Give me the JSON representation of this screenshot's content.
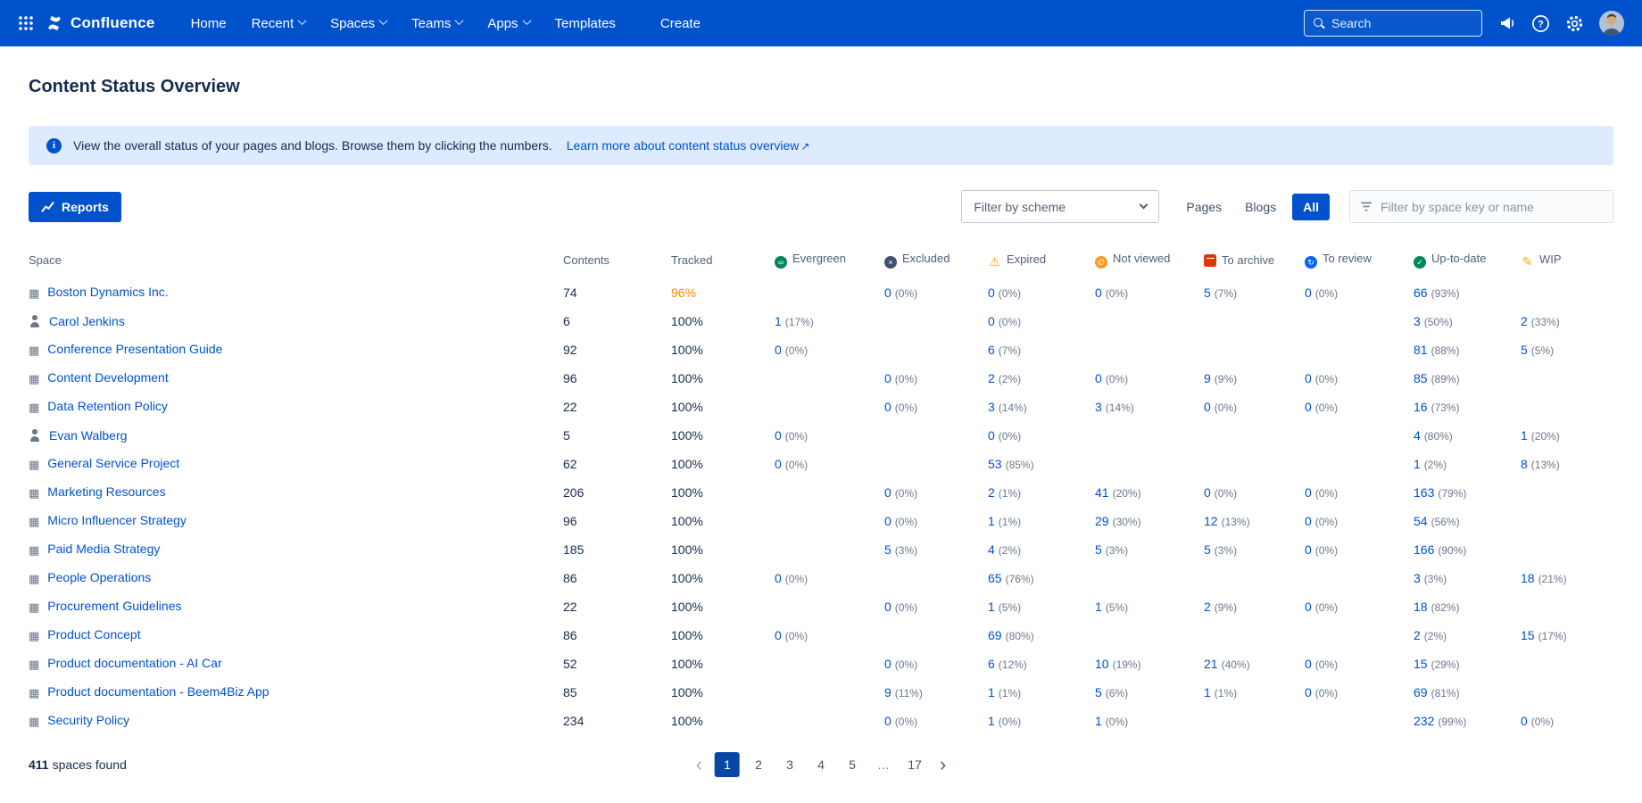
{
  "nav": {
    "brand": "Confluence",
    "items": [
      {
        "label": "Home",
        "chevron": false
      },
      {
        "label": "Recent",
        "chevron": true
      },
      {
        "label": "Spaces",
        "chevron": true
      },
      {
        "label": "Teams",
        "chevron": true
      },
      {
        "label": "Apps",
        "chevron": true
      },
      {
        "label": "Templates",
        "chevron": false
      }
    ],
    "create_label": "Create",
    "search_placeholder": "Search"
  },
  "page": {
    "title": "Content Status Overview",
    "banner": {
      "info_glyph": "i",
      "text": "View the overall status of your pages and blogs. Browse them by clicking the numbers.",
      "link": "Learn more about content status overview",
      "link_arrow": "↗"
    }
  },
  "toolbar": {
    "reports_label": "Reports",
    "scheme_filter_label": "Filter by scheme",
    "toggles": [
      "Pages",
      "Blogs",
      "All"
    ],
    "active_toggle": "All",
    "space_filter_placeholder": "Filter by space key or name"
  },
  "icons": {
    "space_glyph": "▦"
  },
  "colors": {
    "nav_blue": "#0052CC",
    "link_blue": "#0052CC",
    "tracked_warning": "#FF8B00",
    "selected_page_bg": "#0747A6",
    "banner_bg": "#DEEBFF"
  },
  "table": {
    "columns": [
      {
        "key": "space",
        "label": "Space"
      },
      {
        "key": "contents",
        "label": "Contents"
      },
      {
        "key": "tracked",
        "label": "Tracked"
      },
      {
        "key": "evergreen",
        "label": "Evergreen",
        "icon": "evergreen-icon",
        "color": "#00875A",
        "glyph": "∞",
        "shape": "circle"
      },
      {
        "key": "excluded",
        "label": "Excluded",
        "icon": "excluded-icon",
        "color": "#42526E",
        "glyph": "×",
        "shape": "circle"
      },
      {
        "key": "expired",
        "label": "Expired",
        "icon": "expired-icon",
        "color": "#FFAB00",
        "glyph": "⚠",
        "shape": "glyph"
      },
      {
        "key": "not_viewed",
        "label": "Not viewed",
        "icon": "not-viewed-icon",
        "color": "#FF991F",
        "glyph": "∅",
        "shape": "circle"
      },
      {
        "key": "to_archive",
        "label": "To archive",
        "icon": "to-archive-icon",
        "color": "#DE350B",
        "glyph": "",
        "shape": "archive"
      },
      {
        "key": "to_review",
        "label": "To review",
        "icon": "to-review-icon",
        "color": "#0065FF",
        "glyph": "↻",
        "shape": "circle"
      },
      {
        "key": "up_to_date",
        "label": "Up-to-date",
        "icon": "up-to-date-icon",
        "color": "#00875A",
        "glyph": "✓",
        "shape": "circle"
      },
      {
        "key": "wip",
        "label": "WIP",
        "icon": "wip-icon",
        "color": "#FFAB00",
        "glyph": "✎",
        "shape": "glyph"
      }
    ],
    "rows": [
      {
        "name": "Boston Dynamics Inc.",
        "icon": "space",
        "contents": "74",
        "tracked": "96%",
        "tracked_warning": true,
        "status": [
          null,
          {
            "v": "0",
            "p": "(0%)"
          },
          {
            "v": "0",
            "p": "(0%)"
          },
          {
            "v": "0",
            "p": "(0%)"
          },
          {
            "v": "5",
            "p": "(7%)"
          },
          {
            "v": "0",
            "p": "(0%)"
          },
          {
            "v": "66",
            "p": "(93%)"
          },
          null
        ]
      },
      {
        "name": "Carol Jenkins",
        "icon": "person",
        "contents": "6",
        "tracked": "100%",
        "tracked_warning": false,
        "status": [
          {
            "v": "1",
            "p": "(17%)"
          },
          null,
          {
            "v": "0",
            "p": "(0%)"
          },
          null,
          null,
          null,
          {
            "v": "3",
            "p": "(50%)"
          },
          {
            "v": "2",
            "p": "(33%)"
          }
        ]
      },
      {
        "name": "Conference Presentation Guide",
        "icon": "space",
        "contents": "92",
        "tracked": "100%",
        "tracked_warning": false,
        "status": [
          {
            "v": "0",
            "p": "(0%)"
          },
          null,
          {
            "v": "6",
            "p": "(7%)"
          },
          null,
          null,
          null,
          {
            "v": "81",
            "p": "(88%)"
          },
          {
            "v": "5",
            "p": "(5%)"
          }
        ]
      },
      {
        "name": "Content Development",
        "icon": "space",
        "contents": "96",
        "tracked": "100%",
        "tracked_warning": false,
        "status": [
          null,
          {
            "v": "0",
            "p": "(0%)"
          },
          {
            "v": "2",
            "p": "(2%)"
          },
          {
            "v": "0",
            "p": "(0%)"
          },
          {
            "v": "9",
            "p": "(9%)"
          },
          {
            "v": "0",
            "p": "(0%)"
          },
          {
            "v": "85",
            "p": "(89%)"
          },
          null
        ]
      },
      {
        "name": "Data Retention Policy",
        "icon": "space",
        "contents": "22",
        "tracked": "100%",
        "tracked_warning": false,
        "status": [
          null,
          {
            "v": "0",
            "p": "(0%)"
          },
          {
            "v": "3",
            "p": "(14%)"
          },
          {
            "v": "3",
            "p": "(14%)"
          },
          {
            "v": "0",
            "p": "(0%)"
          },
          {
            "v": "0",
            "p": "(0%)"
          },
          {
            "v": "16",
            "p": "(73%)"
          },
          null
        ]
      },
      {
        "name": "Evan Walberg",
        "icon": "person",
        "contents": "5",
        "tracked": "100%",
        "tracked_warning": false,
        "status": [
          {
            "v": "0",
            "p": "(0%)"
          },
          null,
          {
            "v": "0",
            "p": "(0%)"
          },
          null,
          null,
          null,
          {
            "v": "4",
            "p": "(80%)"
          },
          {
            "v": "1",
            "p": "(20%)"
          }
        ]
      },
      {
        "name": "General Service Project",
        "icon": "space",
        "contents": "62",
        "tracked": "100%",
        "tracked_warning": false,
        "status": [
          {
            "v": "0",
            "p": "(0%)"
          },
          null,
          {
            "v": "53",
            "p": "(85%)"
          },
          null,
          null,
          null,
          {
            "v": "1",
            "p": "(2%)"
          },
          {
            "v": "8",
            "p": "(13%)"
          }
        ]
      },
      {
        "name": "Marketing Resources",
        "icon": "space",
        "contents": "206",
        "tracked": "100%",
        "tracked_warning": false,
        "status": [
          null,
          {
            "v": "0",
            "p": "(0%)"
          },
          {
            "v": "2",
            "p": "(1%)"
          },
          {
            "v": "41",
            "p": "(20%)"
          },
          {
            "v": "0",
            "p": "(0%)"
          },
          {
            "v": "0",
            "p": "(0%)"
          },
          {
            "v": "163",
            "p": "(79%)"
          },
          null
        ]
      },
      {
        "name": "Micro Influencer Strategy",
        "icon": "space",
        "contents": "96",
        "tracked": "100%",
        "tracked_warning": false,
        "status": [
          null,
          {
            "v": "0",
            "p": "(0%)"
          },
          {
            "v": "1",
            "p": "(1%)"
          },
          {
            "v": "29",
            "p": "(30%)"
          },
          {
            "v": "12",
            "p": "(13%)"
          },
          {
            "v": "0",
            "p": "(0%)"
          },
          {
            "v": "54",
            "p": "(56%)"
          },
          null
        ]
      },
      {
        "name": "Paid Media Strategy",
        "icon": "space",
        "contents": "185",
        "tracked": "100%",
        "tracked_warning": false,
        "status": [
          null,
          {
            "v": "5",
            "p": "(3%)"
          },
          {
            "v": "4",
            "p": "(2%)"
          },
          {
            "v": "5",
            "p": "(3%)"
          },
          {
            "v": "5",
            "p": "(3%)"
          },
          {
            "v": "0",
            "p": "(0%)"
          },
          {
            "v": "166",
            "p": "(90%)"
          },
          null
        ]
      },
      {
        "name": "People Operations",
        "icon": "space",
        "contents": "86",
        "tracked": "100%",
        "tracked_warning": false,
        "status": [
          {
            "v": "0",
            "p": "(0%)"
          },
          null,
          {
            "v": "65",
            "p": "(76%)"
          },
          null,
          null,
          null,
          {
            "v": "3",
            "p": "(3%)"
          },
          {
            "v": "18",
            "p": "(21%)"
          }
        ]
      },
      {
        "name": "Procurement Guidelines",
        "icon": "space",
        "contents": "22",
        "tracked": "100%",
        "tracked_warning": false,
        "status": [
          null,
          {
            "v": "0",
            "p": "(0%)"
          },
          {
            "v": "1",
            "p": "(5%)"
          },
          {
            "v": "1",
            "p": "(5%)"
          },
          {
            "v": "2",
            "p": "(9%)"
          },
          {
            "v": "0",
            "p": "(0%)"
          },
          {
            "v": "18",
            "p": "(82%)"
          },
          null
        ]
      },
      {
        "name": "Product Concept",
        "icon": "space",
        "contents": "86",
        "tracked": "100%",
        "tracked_warning": false,
        "status": [
          {
            "v": "0",
            "p": "(0%)"
          },
          null,
          {
            "v": "69",
            "p": "(80%)"
          },
          null,
          null,
          null,
          {
            "v": "2",
            "p": "(2%)"
          },
          {
            "v": "15",
            "p": "(17%)"
          }
        ]
      },
      {
        "name": "Product documentation - AI Car",
        "icon": "space",
        "contents": "52",
        "tracked": "100%",
        "tracked_warning": false,
        "status": [
          null,
          {
            "v": "0",
            "p": "(0%)"
          },
          {
            "v": "6",
            "p": "(12%)"
          },
          {
            "v": "10",
            "p": "(19%)"
          },
          {
            "v": "21",
            "p": "(40%)"
          },
          {
            "v": "0",
            "p": "(0%)"
          },
          {
            "v": "15",
            "p": "(29%)"
          },
          null
        ]
      },
      {
        "name": "Product documentation - Beem4Biz App",
        "icon": "space",
        "contents": "85",
        "tracked": "100%",
        "tracked_warning": false,
        "status": [
          null,
          {
            "v": "9",
            "p": "(11%)"
          },
          {
            "v": "1",
            "p": "(1%)"
          },
          {
            "v": "5",
            "p": "(6%)"
          },
          {
            "v": "1",
            "p": "(1%)"
          },
          {
            "v": "0",
            "p": "(0%)"
          },
          {
            "v": "69",
            "p": "(81%)"
          },
          null
        ]
      },
      {
        "name": "Security Policy",
        "icon": "space",
        "contents": "234",
        "tracked": "100%",
        "tracked_warning": false,
        "status": [
          null,
          {
            "v": "0",
            "p": "(0%)"
          },
          {
            "v": "1",
            "p": "(0%)"
          },
          {
            "v": "1",
            "p": "(0%)"
          },
          null,
          null,
          {
            "v": "232",
            "p": "(99%)"
          },
          {
            "v": "0",
            "p": "(0%)"
          }
        ]
      }
    ]
  },
  "footer": {
    "count": "411",
    "count_label": "spaces found",
    "prev_glyph": "‹",
    "next_glyph": "›",
    "pages": [
      "1",
      "2",
      "3",
      "4",
      "5",
      "…",
      "17"
    ],
    "current_page": "1"
  }
}
